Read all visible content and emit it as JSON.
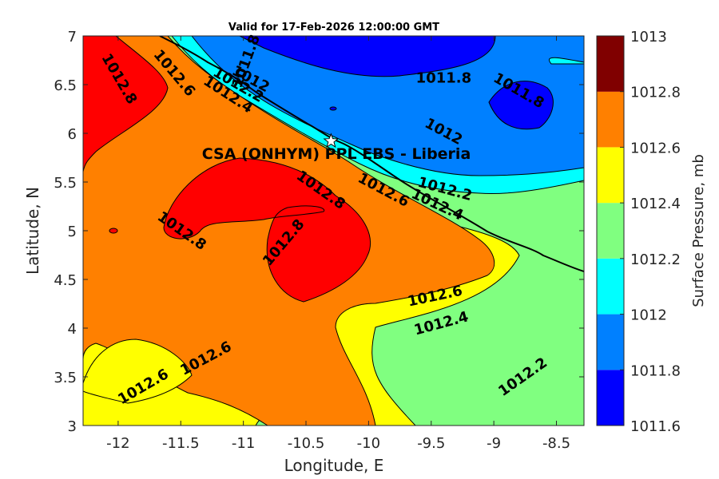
{
  "figure": {
    "title": "Valid for 17-Feb-2026 12:00:00 GMT",
    "site_label": "CSA (ONHYM) PPL EBS  - Liberia",
    "site_marker_icon": "star-icon"
  },
  "chart_data": {
    "type": "filled-contour-map",
    "xlabel": "Longitude, E",
    "ylabel": "Latitude, N",
    "xlim": [
      -12.28,
      -8.28
    ],
    "ylim": [
      3,
      7
    ],
    "x_ticks": [
      "-12",
      "-11.5",
      "-11",
      "-10.5",
      "-10",
      "-9.5",
      "-9",
      "-8.5"
    ],
    "y_ticks": [
      "3",
      "3.5",
      "4",
      "4.5",
      "5",
      "5.5",
      "6",
      "6.5",
      "7"
    ],
    "site": {
      "lon": -10.3,
      "lat": 5.92
    },
    "colorbar": {
      "label": "Surface Pressure, mb",
      "ticks": [
        "1011.6",
        "1011.8",
        "1012",
        "1012.2",
        "1012.4",
        "1012.6",
        "1012.8",
        "1013"
      ],
      "colors": [
        "#0000ff",
        "#0080ff",
        "#00ffff",
        "#80ff80",
        "#ffff00",
        "#ff8000",
        "#ff0000",
        "#800000"
      ]
    },
    "contour_labels": [
      {
        "text": "1011.8",
        "lon": -10.98,
        "lat": 6.74,
        "angle": -70
      },
      {
        "text": "1012.8",
        "lon": -11.99,
        "lat": 6.56,
        "angle": 60
      },
      {
        "text": "1012.6",
        "lon": -11.55,
        "lat": 6.62,
        "angle": 50
      },
      {
        "text": "1012",
        "lon": -10.94,
        "lat": 6.56,
        "angle": 28
      },
      {
        "text": "1012.2",
        "lon": -11.04,
        "lat": 6.5,
        "angle": 30
      },
      {
        "text": "1012.4",
        "lon": -11.12,
        "lat": 6.4,
        "angle": 33
      },
      {
        "text": "1011.8",
        "lon": -9.4,
        "lat": 6.57,
        "angle": 0
      },
      {
        "text": "1011.8",
        "lon": -8.8,
        "lat": 6.44,
        "angle": 30
      },
      {
        "text": "1012",
        "lon": -9.4,
        "lat": 6.02,
        "angle": 28
      },
      {
        "text": "1012.2",
        "lon": -9.39,
        "lat": 5.43,
        "angle": 15
      },
      {
        "text": "1012.4",
        "lon": -9.45,
        "lat": 5.27,
        "angle": 25
      },
      {
        "text": "1012.6",
        "lon": -9.88,
        "lat": 5.42,
        "angle": 28
      },
      {
        "text": "1012.8",
        "lon": -10.38,
        "lat": 5.42,
        "angle": 35
      },
      {
        "text": "1012.8",
        "lon": -11.49,
        "lat": 5.0,
        "angle": 35
      },
      {
        "text": "1012.8",
        "lon": -10.68,
        "lat": 4.88,
        "angle": -50
      },
      {
        "text": "1012.6",
        "lon": -9.47,
        "lat": 4.33,
        "angle": -12
      },
      {
        "text": "1012.4",
        "lon": -9.42,
        "lat": 4.05,
        "angle": -15
      },
      {
        "text": "1012.2",
        "lon": -8.77,
        "lat": 3.5,
        "angle": -35
      },
      {
        "text": "1012.6",
        "lon": -11.8,
        "lat": 3.4,
        "angle": -30
      },
      {
        "text": "1012.6",
        "lon": -11.3,
        "lat": 3.69,
        "angle": -28
      }
    ]
  }
}
